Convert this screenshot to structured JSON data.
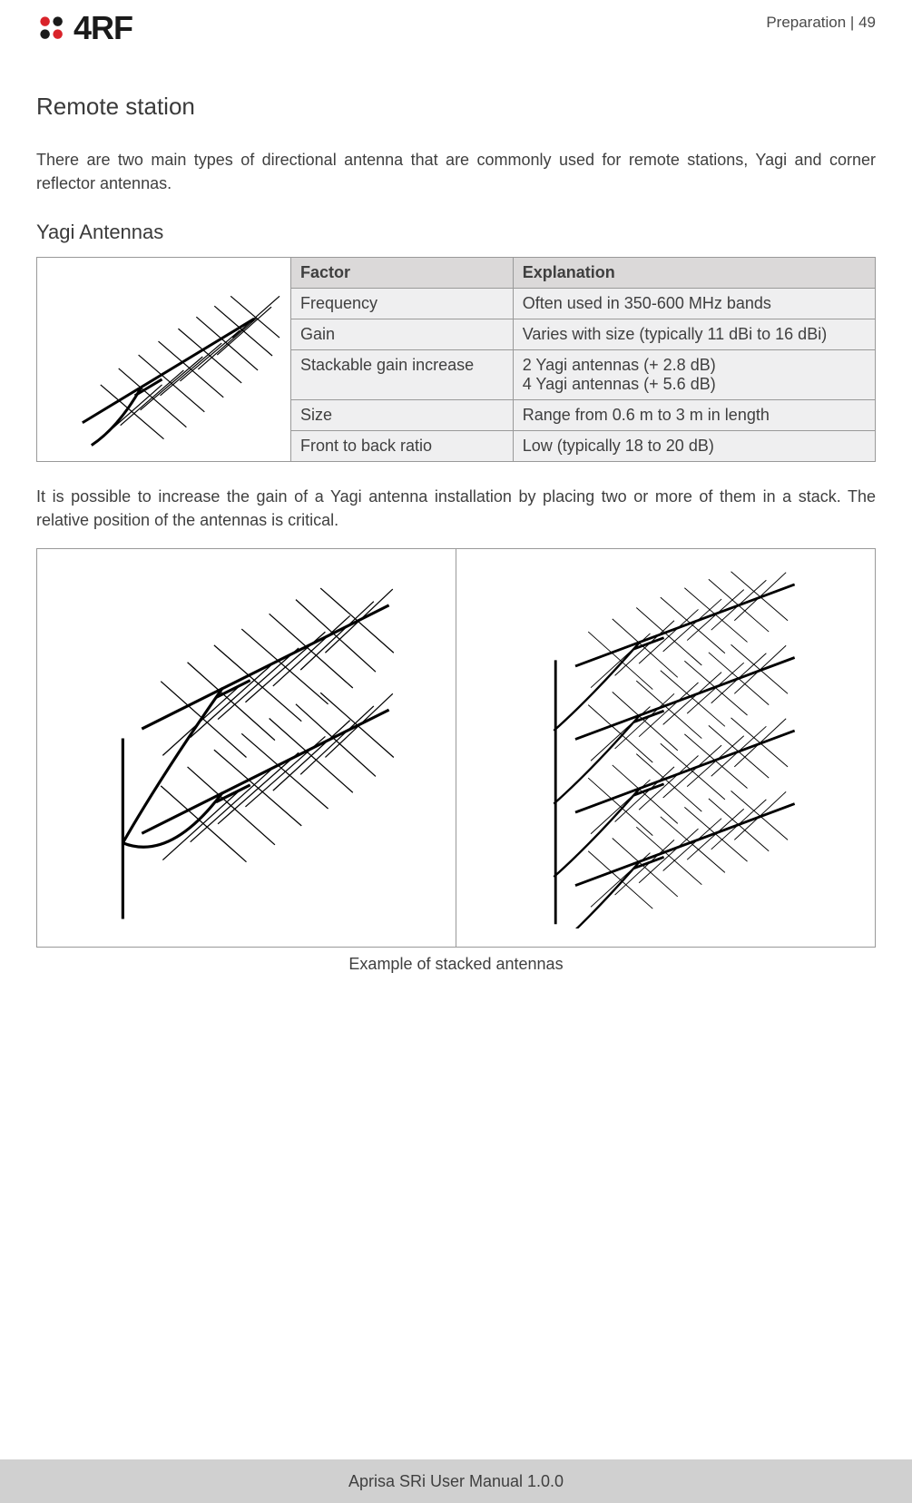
{
  "header": {
    "logo_text": "4RF",
    "section_label": "Preparation",
    "page_separator": " | ",
    "page_number": "49"
  },
  "section_title": "Remote station",
  "intro_text": "There are two main types of directional antenna that are commonly used for remote stations, Yagi and corner reflector antennas.",
  "subsection_title": "Yagi Antennas",
  "yagi_table": {
    "headers": [
      "Factor",
      "Explanation"
    ],
    "rows": [
      {
        "factor": "Frequency",
        "explanation": "Often used in 350-600 MHz bands"
      },
      {
        "factor": "Gain",
        "explanation": "Varies with size (typically 11 dBi to 16 dBi)"
      },
      {
        "factor": "Stackable gain increase",
        "explanation": "2 Yagi antennas (+ 2.8 dB)\n4 Yagi antennas (+ 5.6 dB)"
      },
      {
        "factor": "Size",
        "explanation": "Range from 0.6 m to 3 m in length"
      },
      {
        "factor": "Front to back ratio",
        "explanation": "Low (typically 18 to 20 dB)"
      }
    ]
  },
  "body_text": "It is possible to increase the gain of a Yagi antenna installation by placing two or more of them in a stack. The relative position of the antennas is critical.",
  "caption": "Example of stacked antennas",
  "footer": "Aprisa SRi User Manual 1.0.0",
  "colors": {
    "text": "#3f3f3f",
    "table_header_bg": "#dbd9d9",
    "table_cell_bg": "#efeff0",
    "border": "#999999",
    "footer_bg": "#d0d0d0",
    "logo_red": "#d9232a",
    "logo_dark": "#1a1a1a",
    "page_bg": "#ffffff"
  },
  "typography": {
    "body_fontsize": 18,
    "h1_fontsize": 26,
    "h2_fontsize": 22,
    "header_meta_fontsize": 17,
    "logo_fontsize": 36
  }
}
